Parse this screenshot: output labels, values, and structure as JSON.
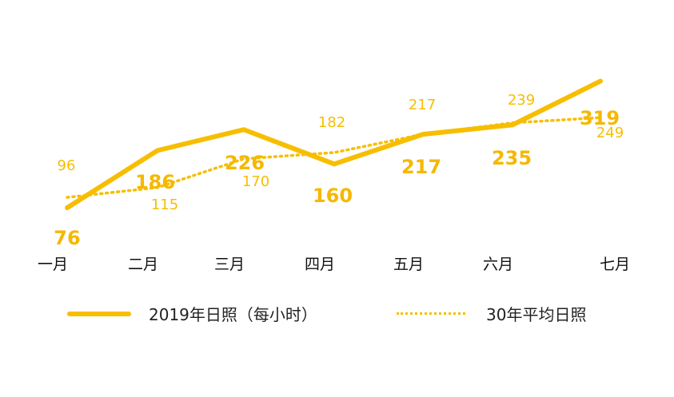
{
  "chart_data": {
    "type": "line",
    "categories": [
      "一月",
      "二月",
      "三月",
      "四月",
      "五月",
      "六月",
      "七月"
    ],
    "series": [
      {
        "name": "2019年日照（每小时）",
        "values": [
          76,
          186,
          226,
          160,
          217,
          235,
          319
        ],
        "style": "solid",
        "color": "#f7be00"
      },
      {
        "name": "30年平均日照",
        "values": [
          96,
          115,
          170,
          182,
          217,
          239,
          249
        ],
        "style": "dotted",
        "color": "#f7be00"
      }
    ],
    "data_labels": {
      "series_1": [
        "76",
        "186",
        "226",
        "160",
        "217",
        "235",
        "319"
      ],
      "series_2": [
        "96",
        "115",
        "170",
        "182",
        "217",
        "239",
        "249"
      ]
    },
    "legend_position": "bottom",
    "grid": false,
    "ylim": [
      0,
      360
    ]
  },
  "legend": {
    "items": [
      {
        "label": "2019年日照（每小时）"
      },
      {
        "label": "30年平均日照"
      }
    ]
  }
}
